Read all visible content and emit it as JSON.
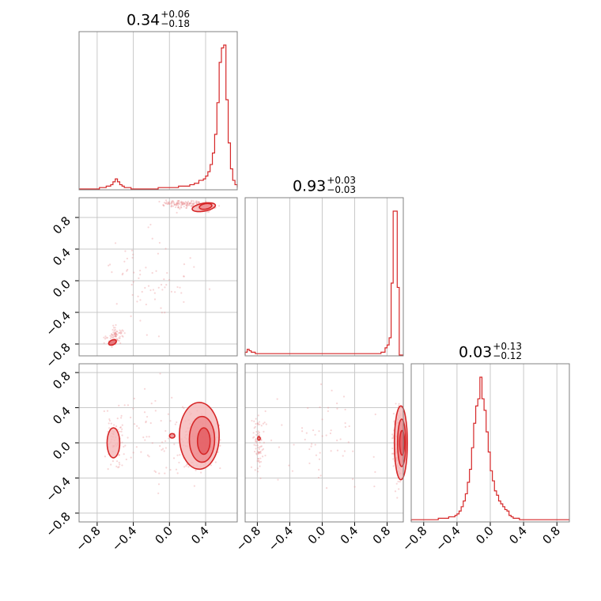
{
  "chart_data": [
    {
      "type": "histogram",
      "panel": "diagonal-1",
      "title": {
        "value": "0.34",
        "plus": "+0.06",
        "minus": "−0.18"
      },
      "xlim": [
        -1.0,
        0.75
      ],
      "ylim": [
        0,
        1.0
      ],
      "x_ticks": [
        -0.8,
        -0.4,
        0.0,
        0.4
      ],
      "bin_width": 0.025,
      "bins_start": -1.0,
      "values": [
        0,
        0,
        0,
        0,
        0,
        0,
        0,
        0,
        0,
        0.01,
        0.01,
        0.01,
        0.02,
        0.02,
        0.03,
        0.05,
        0.07,
        0.05,
        0.03,
        0.02,
        0.01,
        0.01,
        0.01,
        0,
        0,
        0,
        0,
        0,
        0,
        0,
        0,
        0,
        0,
        0,
        0,
        0.01,
        0.01,
        0.01,
        0.01,
        0.01,
        0.01,
        0.01,
        0.01,
        0.01,
        0.02,
        0.02,
        0.02,
        0.02,
        0.02,
        0.03,
        0.03,
        0.04,
        0.04,
        0.06,
        0.06,
        0.07,
        0.09,
        0.12,
        0.17,
        0.25,
        0.38,
        0.6,
        0.88,
        0.98,
        1.0,
        0.62,
        0.32,
        0.14,
        0.06,
        0.03,
        0.02,
        0.01
      ]
    },
    {
      "type": "histogram",
      "panel": "diagonal-2",
      "title": {
        "value": "0.93",
        "plus": "+0.03",
        "minus": "−0.03"
      },
      "xlim": [
        -0.95,
        1.0
      ],
      "ylim": [
        0,
        1.0
      ],
      "x_ticks": [
        -0.8,
        -0.4,
        0.0,
        0.4,
        0.8
      ],
      "bin_width": 0.025,
      "bins_start": -0.95,
      "values": [
        0.02,
        0.04,
        0.03,
        0.02,
        0.02,
        0.01,
        0.01,
        0.01,
        0.01,
        0.01,
        0.01,
        0.01,
        0.01,
        0.01,
        0.01,
        0.01,
        0.01,
        0.01,
        0.01,
        0.01,
        0.01,
        0.01,
        0.01,
        0.01,
        0.01,
        0.01,
        0.01,
        0.01,
        0.01,
        0.01,
        0.01,
        0.01,
        0.01,
        0.01,
        0.01,
        0.01,
        0.01,
        0.01,
        0.01,
        0.01,
        0.01,
        0.01,
        0.01,
        0.01,
        0.01,
        0.01,
        0.01,
        0.01,
        0.01,
        0.01,
        0.01,
        0.01,
        0.01,
        0.01,
        0.01,
        0.01,
        0.01,
        0.01,
        0.01,
        0.01,
        0.01,
        0.01,
        0.01,
        0.01,
        0.01,
        0.01,
        0.01,
        0.02,
        0.02,
        0.05,
        0.07,
        0.12,
        0.5,
        1.0,
        1.0,
        0.47,
        0.0,
        0.0
      ]
    },
    {
      "type": "histogram",
      "panel": "diagonal-3",
      "title": {
        "value": "0.03",
        "plus": "+0.13",
        "minus": "−0.12"
      },
      "xlim": [
        -0.95,
        0.95
      ],
      "ylim": [
        0,
        1.0
      ],
      "x_ticks": [
        -0.8,
        -0.4,
        0.0,
        0.4,
        0.8
      ],
      "bin_width": 0.025,
      "bins_start": -0.95,
      "values": [
        0.01,
        0.01,
        0.01,
        0.01,
        0.01,
        0.01,
        0.01,
        0.01,
        0.01,
        0.01,
        0.01,
        0.01,
        0.01,
        0.02,
        0.02,
        0.02,
        0.02,
        0.02,
        0.03,
        0.03,
        0.03,
        0.04,
        0.05,
        0.07,
        0.1,
        0.14,
        0.19,
        0.27,
        0.36,
        0.51,
        0.68,
        0.8,
        0.85,
        1.0,
        0.85,
        0.77,
        0.62,
        0.48,
        0.35,
        0.28,
        0.21,
        0.18,
        0.14,
        0.12,
        0.1,
        0.08,
        0.07,
        0.04,
        0.03,
        0.02,
        0.02,
        0.02,
        0.01,
        0.01,
        0.01,
        0.01,
        0.01,
        0.01,
        0.01,
        0.01,
        0.01,
        0.01,
        0.01,
        0.01,
        0.01,
        0.01,
        0.01,
        0.01,
        0.01,
        0.01,
        0.01,
        0.01,
        0.01,
        0.01,
        0.01,
        0.01
      ]
    },
    {
      "type": "contour",
      "panel": "row2-col1",
      "xlim": [
        -1.0,
        0.75
      ],
      "ylim": [
        -0.95,
        1.05
      ],
      "y_ticks": [
        -0.8,
        -0.4,
        0.0,
        0.4,
        0.8
      ],
      "levels": [
        {
          "cx": 0.38,
          "cy": 0.93,
          "rx": 0.13,
          "ry": 0.05,
          "rot": -10
        },
        {
          "cx": 0.4,
          "cy": 0.94,
          "rx": 0.07,
          "ry": 0.035,
          "rot": -10
        },
        {
          "cx": -0.63,
          "cy": -0.78,
          "rx": 0.045,
          "ry": 0.03,
          "rot": -25
        }
      ]
    },
    {
      "type": "contour",
      "panel": "row3-col1",
      "xlim": [
        -1.0,
        0.75
      ],
      "ylim": [
        -0.9,
        0.9
      ],
      "y_ticks": [
        -0.8,
        -0.4,
        0.0,
        0.4,
        0.8
      ],
      "x_ticks": [
        -0.8,
        -0.4,
        0.0,
        0.4
      ],
      "levels": [
        {
          "cx": 0.33,
          "cy": 0.08,
          "rx": 0.22,
          "ry": 0.38,
          "rot": 0
        },
        {
          "cx": 0.36,
          "cy": 0.04,
          "rx": 0.14,
          "ry": 0.26,
          "rot": 0
        },
        {
          "cx": 0.38,
          "cy": 0.02,
          "rx": 0.07,
          "ry": 0.15,
          "rot": 0
        },
        {
          "cx": -0.62,
          "cy": 0.0,
          "rx": 0.07,
          "ry": 0.17,
          "rot": 0
        },
        {
          "cx": 0.03,
          "cy": 0.08,
          "rx": 0.03,
          "ry": 0.025,
          "rot": 0
        }
      ]
    },
    {
      "type": "contour",
      "panel": "row3-col2",
      "xlim": [
        -0.95,
        1.0
      ],
      "ylim": [
        -0.9,
        0.9
      ],
      "x_ticks": [
        -0.8,
        -0.4,
        0.0,
        0.4,
        0.8
      ],
      "levels": [
        {
          "cx": 0.97,
          "cy": 0.0,
          "rx": 0.08,
          "ry": 0.42,
          "rot": 0
        },
        {
          "cx": 0.98,
          "cy": 0.0,
          "rx": 0.05,
          "ry": 0.27,
          "rot": 0
        },
        {
          "cx": 0.985,
          "cy": 0.0,
          "rx": 0.03,
          "ry": 0.14,
          "rot": 0
        },
        {
          "cx": -0.78,
          "cy": 0.05,
          "rx": 0.015,
          "ry": 0.02,
          "rot": 0
        }
      ]
    }
  ],
  "tick_labels": {
    "x_col1": [
      "−0.8",
      "−0.4",
      "0.0",
      "0.4"
    ],
    "x_col2": [
      "−0.8",
      "−0.4",
      "0.0",
      "0.4",
      "0.8"
    ],
    "x_col3": [
      "−0.8",
      "−0.4",
      "0.0",
      "0.4",
      "0.8"
    ],
    "y_row2": [
      "−0.8",
      "−0.4",
      "0.0",
      "0.4",
      "0.8"
    ],
    "y_row3": [
      "−0.8",
      "−0.4",
      "0.0",
      "0.4",
      "0.8"
    ]
  },
  "colors": {
    "line": "#d62728",
    "fill_outer": "#f5b6b8",
    "fill_mid": "#ee8a8d",
    "fill_inner": "#e35b60",
    "scatter": "#e88a8c",
    "grid": "#c8c8c8",
    "frame": "#808080"
  }
}
